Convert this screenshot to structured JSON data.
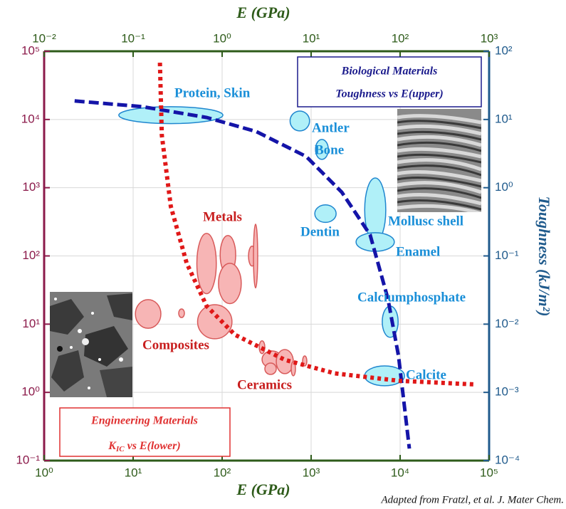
{
  "chart_data": {
    "type": "ellipse",
    "xlabel": "E  (GPa)",
    "x2label": "E  (GPa)",
    "y2label": "Toughness  (kJ/m²)",
    "xlog": true,
    "ylog": true,
    "grid": true,
    "xlim": [
      1,
      100000
    ],
    "xticks": [
      {
        "value": 1,
        "label": "10⁰"
      },
      {
        "value": 10,
        "label": "10¹"
      },
      {
        "value": 100,
        "label": "10²"
      },
      {
        "value": 1000,
        "label": "10³"
      },
      {
        "value": 10000,
        "label": "10⁴"
      },
      {
        "value": 100000,
        "label": "10⁵"
      }
    ],
    "x2lim": [
      0.01,
      1000
    ],
    "x2ticks": [
      {
        "value": 0.01,
        "label": "10⁻²"
      },
      {
        "value": 0.1,
        "label": "10⁻¹"
      },
      {
        "value": 1,
        "label": "10⁰"
      },
      {
        "value": 10,
        "label": "10¹"
      },
      {
        "value": 100,
        "label": "10²"
      },
      {
        "value": 1000,
        "label": "10³"
      }
    ],
    "ylim": [
      0.1,
      100000
    ],
    "yticks": [
      {
        "value": 0.1,
        "label": "10⁻¹"
      },
      {
        "value": 1,
        "label": "10⁰"
      },
      {
        "value": 10,
        "label": "10¹"
      },
      {
        "value": 100,
        "label": "10²"
      },
      {
        "value": 1000,
        "label": "10³"
      },
      {
        "value": 10000,
        "label": "10⁴"
      },
      {
        "value": 100000,
        "label": "10⁵"
      }
    ],
    "y2lim": [
      0.0001,
      100
    ],
    "y2ticks": [
      {
        "value": 0.0001,
        "label": "10⁻⁴"
      },
      {
        "value": 0.001,
        "label": "10⁻³"
      },
      {
        "value": 0.01,
        "label": "10⁻²"
      },
      {
        "value": 0.1,
        "label": "10⁻¹"
      },
      {
        "value": 1,
        "label": "10⁰"
      },
      {
        "value": 10,
        "label": "10¹"
      },
      {
        "value": 100,
        "label": "10²"
      }
    ],
    "series": [
      {
        "name": "Biological Materials",
        "subtitle": "Toughness vs E(upper)",
        "axis": "y2",
        "color": "#1a8fd8",
        "box_color": "#1a1a8c",
        "fill": "#b0f0f8",
        "stroke": "#1f86cf",
        "groups": [
          {
            "label": "Protein, Skin",
            "regions": [
              {
                "x": [
                  0.069,
                  1.02
                ],
                "y": [
                  8.7,
                  15.4
                ]
              }
            ]
          },
          {
            "label": "Antler",
            "regions": [
              {
                "x": [
                  5.8,
                  9.6
                ],
                "y": [
                  6.8,
                  13.3
                ]
              }
            ]
          },
          {
            "label": "Bone",
            "regions": [
              {
                "x": [
                  11.2,
                  15.6
                ],
                "y": [
                  2.6,
                  5.1
                ]
              }
            ]
          },
          {
            "label": "Dentin",
            "regions": [
              {
                "x": [
                  11,
                  19.1
                ],
                "y": [
                  0.31,
                  0.56
                ]
              }
            ]
          },
          {
            "label": "Mollusc shell",
            "regions": [
              {
                "x": [
                  40,
                  69
                ],
                "y": [
                  0.16,
                  1.39
                ]
              }
            ]
          },
          {
            "label": "Enamel",
            "regions": [
              {
                "x": [
                  32,
                  86
                ],
                "y": [
                  0.117,
                  0.219
                ]
              }
            ]
          },
          {
            "label": "Calciumphosphate",
            "regions": [
              {
                "x": [
                  63,
                  95
                ],
                "y": [
                  0.0064,
                  0.0184
                ]
              }
            ]
          },
          {
            "label": "Calcite",
            "regions": [
              {
                "x": [
                  40,
                  112
                ],
                "y": [
                  0.00125,
                  0.00244
                ]
              }
            ]
          }
        ],
        "curve": {
          "color": "#1414a8",
          "x": [
            0.022,
            0.127,
            0.67,
            2.42,
            8.8,
            22.1,
            46,
            73,
            96,
            127
          ],
          "y": [
            18.7,
            15.4,
            10.7,
            6.65,
            2.87,
            0.86,
            0.204,
            0.0234,
            0.0034,
            0.00015
          ]
        }
      },
      {
        "name": "Engineering Materials",
        "subtitle_parts": [
          "K",
          "IC",
          " vs E(lower)"
        ],
        "axis": "y",
        "color": "#c81e1e",
        "box_color": "#e03030",
        "fill": "#f7b5b5",
        "stroke": "#d85a5a",
        "groups": [
          {
            "label": "Metals",
            "regions": [
              {
                "x": [
                  52,
                  86
                ],
                "y": [
                  28,
                  214
                ]
              },
              {
                "x": [
                  95,
                  142
                ],
                "y": [
                  54,
                  199
                ]
              },
              {
                "x": [
                  91,
                  164
                ],
                "y": [
                  20,
                  78
                ]
              },
              {
                "x": [
                  198,
                  238
                ],
                "y": [
                  71,
                  139
                ]
              },
              {
                "x": [
                  225,
                  251
                ],
                "y": [
                  34,
                  292
                ]
              }
            ]
          },
          {
            "label": "Composites",
            "regions": [
              {
                "x": [
                  10.6,
                  20.5
                ],
                "y": [
                  8.7,
                  22.9
                ]
              },
              {
                "x": [
                  32.5,
                  37.7
                ],
                "y": [
                  12.5,
                  16.7
                ]
              },
              {
                "x": [
                  53,
                  129
                ],
                "y": [
                  6.1,
                  19.3
                ]
              }
            ]
          },
          {
            "label": "Ceramics",
            "regions": [
              {
                "x": [
                  261,
                  302
                ],
                "y": [
                  3.7,
                  5.7
                ]
              },
              {
                "x": [
                  281,
                  470
                ],
                "y": [
                  2.28,
                  4.05
                ]
              },
              {
                "x": [
                  302,
                  406
                ],
                "y": [
                  1.83,
                  2.69
                ]
              },
              {
                "x": [
                  406,
                  631
                ],
                "y": [
                  1.88,
                  4.25
                ]
              },
              {
                "x": [
                  597,
                  667
                ],
                "y": [
                  1.75,
                  2.82
                ]
              },
              {
                "x": [
                  802,
                  895
                ],
                "y": [
                  2.44,
                  3.42
                ]
              }
            ]
          }
        ],
        "curve": {
          "color": "#e01818",
          "x": [
            20,
            21,
            26.5,
            40,
            67,
            139,
            506,
            1840,
            9640,
            66700
          ],
          "y": [
            68000,
            5900,
            533,
            78,
            18.4,
            7.0,
            3.0,
            1.9,
            1.48,
            1.31
          ]
        }
      }
    ],
    "source": "Adapted from Fratzl, et al. J. Mater Chem."
  }
}
